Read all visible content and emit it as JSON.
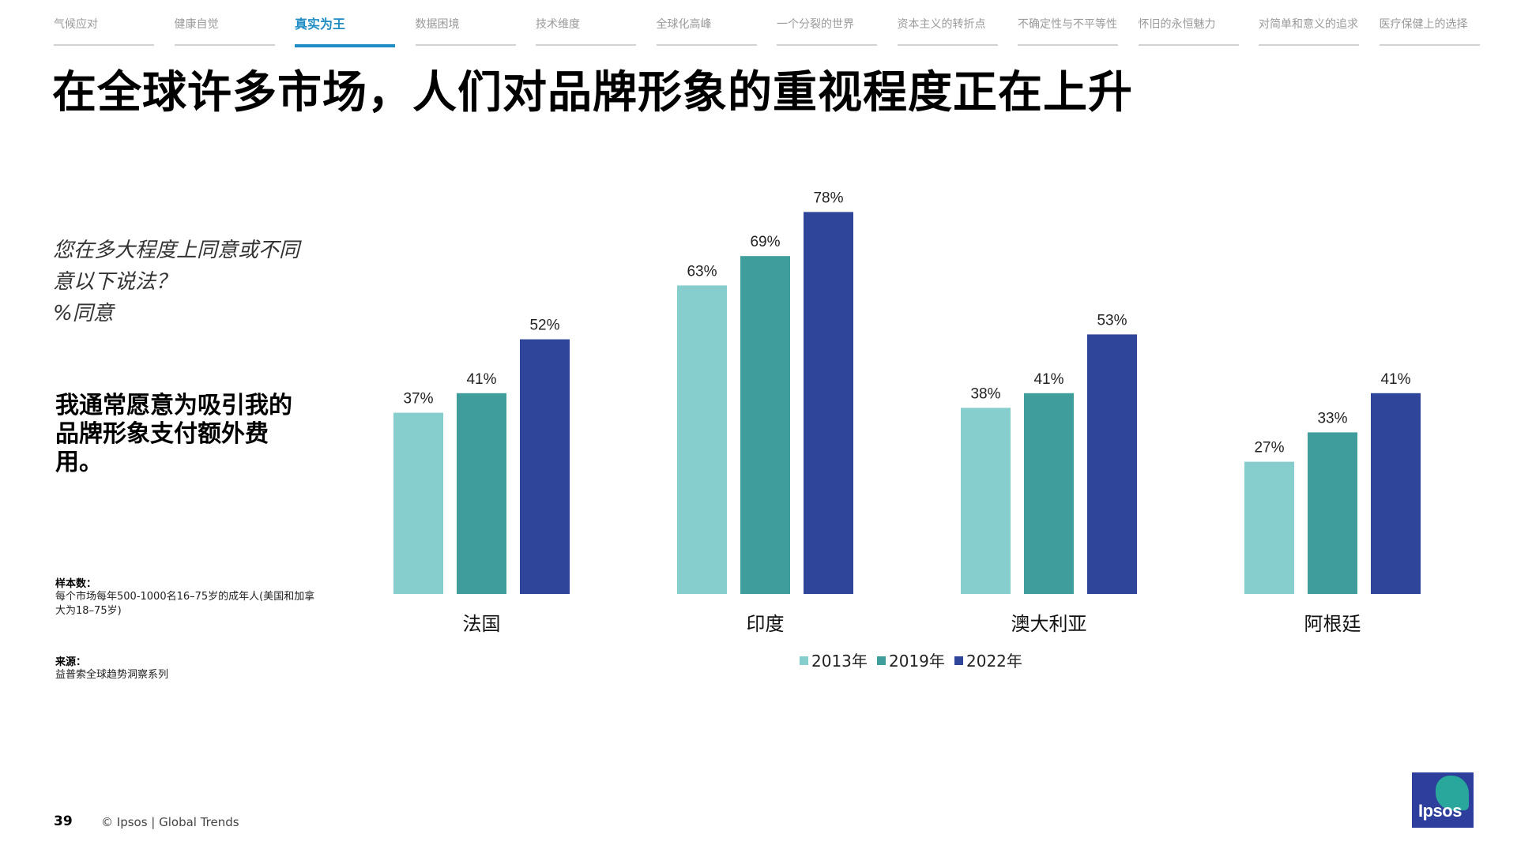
{
  "nav": {
    "tabs": [
      {
        "label": "气候应对",
        "active": false
      },
      {
        "label": "健康自觉",
        "active": false
      },
      {
        "label": "真实为王",
        "active": true
      },
      {
        "label": "数据困境",
        "active": false
      },
      {
        "label": "技术维度",
        "active": false
      },
      {
        "label": "全球化高峰",
        "active": false
      },
      {
        "label": "一个分裂的世界",
        "active": false
      },
      {
        "label": "资本主义的转折点",
        "active": false
      },
      {
        "label": "不确定性与不平等性",
        "active": false
      },
      {
        "label": "怀旧的永恒魅力",
        "active": false
      },
      {
        "label": "对简单和意义的追求",
        "active": false
      },
      {
        "label": "医疗保健上的选择",
        "active": false
      }
    ]
  },
  "title": "在全球许多市场，人们对品牌形象的重视程度正在上升",
  "question": {
    "line1": "您在多大程度上同意或不同",
    "line2": "意以下说法？",
    "line3": "%同意"
  },
  "statement": "我通常愿意为吸引我的品牌形象支付额外费用。",
  "sample": {
    "label": "样本数：",
    "text": "每个市场每年500-1000名16–75岁的成年人(美国和加拿大为18–75岁)"
  },
  "source": {
    "label": "来源：",
    "text": "益普索全球趋势洞察系列"
  },
  "footer": {
    "page": "39",
    "copyright": "© Ipsos | Global Trends"
  },
  "logo": {
    "text": "Ipsos"
  },
  "chart_data": {
    "type": "bar",
    "categories": [
      "法国",
      "印度",
      "澳大利亚",
      "阿根廷"
    ],
    "series": [
      {
        "name": "2013年",
        "color": "#86cdcd",
        "values": [
          37,
          63,
          38,
          27
        ]
      },
      {
        "name": "2019年",
        "color": "#3f9e9b",
        "values": [
          41,
          69,
          41,
          33
        ]
      },
      {
        "name": "2022年",
        "color": "#2f4599",
        "values": [
          52,
          78,
          53,
          41
        ]
      }
    ],
    "value_suffix": "%",
    "ylim": [
      0,
      100
    ],
    "grid": false,
    "legend_position": "bottom"
  }
}
